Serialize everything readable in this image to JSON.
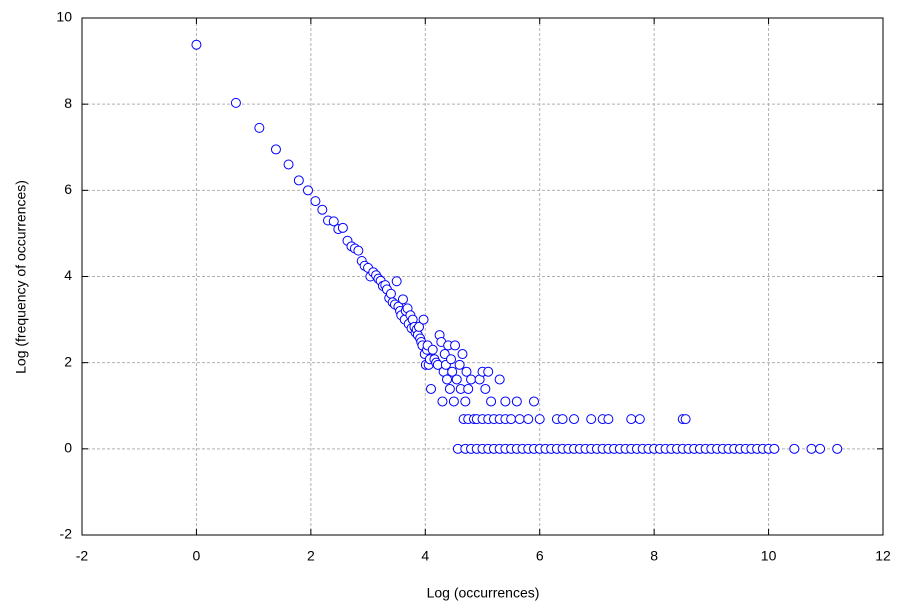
{
  "chart_data": {
    "type": "scatter",
    "x_label": "Log (occurrences)",
    "y_label": "Log (frequency of occurrences)",
    "xlim": [
      -2,
      12
    ],
    "xticks": [
      -2,
      0,
      2,
      4,
      6,
      8,
      10,
      12
    ],
    "ylim": [
      -2,
      10
    ],
    "yticks": [
      -2,
      0,
      2,
      4,
      6,
      8,
      10
    ],
    "grid": true,
    "color": "#0000ff",
    "x": [
      0,
      0.69,
      1.1,
      1.39,
      1.61,
      1.79,
      1.95,
      2.08,
      2.2,
      2.3,
      2.4,
      2.48,
      2.56,
      2.64,
      2.71,
      2.77,
      2.83,
      2.89,
      2.94,
      3.0,
      3.04,
      3.09,
      3.14,
      3.18,
      3.22,
      3.26,
      3.3,
      3.33,
      3.37,
      3.4,
      3.43,
      3.47,
      3.5,
      3.53,
      3.56,
      3.58,
      3.61,
      3.64,
      3.66,
      3.69,
      3.71,
      3.74,
      3.76,
      3.78,
      3.81,
      3.83,
      3.85,
      3.87,
      3.89,
      3.91,
      3.93,
      3.95,
      3.97,
      3.99,
      4.01,
      4.03,
      4.04,
      4.06,
      4.08,
      4.1,
      4.13,
      4.16,
      4.19,
      4.22,
      4.25,
      4.28,
      4.3,
      4.32,
      4.34,
      4.36,
      4.38,
      4.4,
      4.43,
      4.45,
      4.47,
      4.5,
      4.52,
      4.55,
      4.6,
      4.62,
      4.65,
      4.7,
      4.72,
      4.75,
      4.8,
      4.95,
      5.0,
      5.05,
      5.1,
      5.15,
      5.3,
      5.4,
      5.6,
      5.9,
      4.67,
      4.75,
      4.85,
      4.9,
      5.0,
      5.1,
      5.2,
      5.3,
      5.4,
      5.5,
      5.65,
      5.8,
      6.0,
      6.3,
      6.4,
      6.6,
      6.9,
      7.1,
      7.2,
      7.6,
      7.75,
      8.5,
      8.55,
      4.57,
      4.7,
      4.8,
      4.9,
      5.0,
      5.1,
      5.2,
      5.3,
      5.4,
      5.5,
      5.6,
      5.7,
      5.8,
      5.9,
      6.0,
      6.1,
      6.2,
      6.3,
      6.4,
      6.5,
      6.6,
      6.7,
      6.8,
      6.9,
      7.0,
      7.1,
      7.2,
      7.3,
      7.4,
      7.5,
      7.6,
      7.7,
      7.8,
      7.9,
      8.0,
      8.1,
      8.2,
      8.3,
      8.4,
      8.5,
      8.6,
      8.7,
      8.8,
      8.9,
      9.0,
      9.1,
      9.2,
      9.3,
      9.4,
      9.5,
      9.6,
      9.7,
      9.8,
      9.9,
      10.0,
      10.1,
      10.45,
      10.75,
      10.9,
      11.2
    ],
    "values": [
      9.38,
      8.03,
      7.45,
      6.95,
      6.6,
      6.23,
      6.0,
      5.75,
      5.55,
      5.3,
      5.28,
      5.1,
      5.13,
      4.83,
      4.7,
      4.65,
      4.6,
      4.36,
      4.25,
      4.2,
      4.0,
      4.1,
      4.03,
      3.95,
      3.9,
      3.78,
      3.8,
      3.7,
      3.5,
      3.6,
      3.4,
      3.35,
      3.89,
      3.3,
      3.2,
      3.1,
      3.47,
      3.0,
      3.2,
      3.26,
      2.9,
      3.1,
      2.8,
      3.0,
      2.83,
      2.7,
      2.77,
      2.64,
      2.83,
      2.56,
      2.48,
      2.4,
      3.0,
      2.2,
      1.95,
      2.3,
      2.4,
      1.95,
      2.08,
      1.39,
      2.3,
      2.08,
      2.0,
      1.95,
      2.64,
      2.48,
      1.1,
      1.79,
      2.2,
      1.95,
      1.61,
      2.4,
      1.39,
      2.08,
      1.79,
      1.1,
      2.4,
      1.61,
      1.95,
      1.39,
      2.2,
      1.1,
      1.79,
      1.39,
      1.61,
      1.61,
      1.79,
      1.39,
      1.79,
      1.1,
      1.61,
      1.1,
      1.1,
      1.1,
      0.69,
      0.69,
      0.69,
      0.69,
      0.69,
      0.69,
      0.69,
      0.69,
      0.69,
      0.69,
      0.69,
      0.69,
      0.69,
      0.69,
      0.69,
      0.69,
      0.69,
      0.69,
      0.69,
      0.69,
      0.69,
      0.69,
      0.69,
      0,
      0,
      0,
      0,
      0,
      0,
      0,
      0,
      0,
      0,
      0,
      0,
      0,
      0,
      0,
      0,
      0,
      0,
      0,
      0,
      0,
      0,
      0,
      0,
      0,
      0,
      0,
      0,
      0,
      0,
      0,
      0,
      0,
      0,
      0,
      0,
      0,
      0,
      0,
      0,
      0,
      0,
      0,
      0,
      0,
      0,
      0,
      0,
      0,
      0,
      0,
      0,
      0,
      0,
      0,
      0,
      0,
      0,
      0,
      0
    ]
  }
}
